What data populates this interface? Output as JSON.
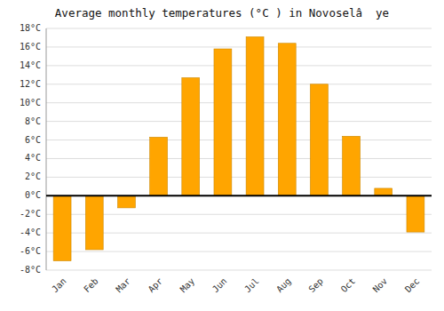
{
  "chart_data": {
    "type": "bar",
    "title": "Average monthly temperatures (°C ) in Novoselâ  ye",
    "categories": [
      "Jan",
      "Feb",
      "Mar",
      "Apr",
      "May",
      "Jun",
      "Jul",
      "Aug",
      "Sep",
      "Oct",
      "Nov",
      "Dec"
    ],
    "values": [
      -7.0,
      -5.8,
      -1.3,
      6.3,
      12.7,
      15.8,
      17.1,
      16.4,
      12.0,
      6.4,
      0.8,
      -3.9
    ],
    "color": "#FFA500",
    "ylim": [
      -8,
      18
    ],
    "yticks": [
      {
        "value": -8,
        "label": "-8°C"
      },
      {
        "value": -6,
        "label": "-6°C"
      },
      {
        "value": -4,
        "label": "-4°C"
      },
      {
        "value": -2,
        "label": "-2°C"
      },
      {
        "value": 0,
        "label": "0°C"
      },
      {
        "value": 2,
        "label": "2°C"
      },
      {
        "value": 4,
        "label": "4°C"
      },
      {
        "value": 6,
        "label": "6°C"
      },
      {
        "value": 8,
        "label": "8°C"
      },
      {
        "value": 10,
        "label": "10°C"
      },
      {
        "value": 12,
        "label": "12°C"
      },
      {
        "value": 14,
        "label": "14°C"
      },
      {
        "value": 16,
        "label": "16°C"
      },
      {
        "value": 18,
        "label": "18°C"
      }
    ],
    "grid": true
  }
}
